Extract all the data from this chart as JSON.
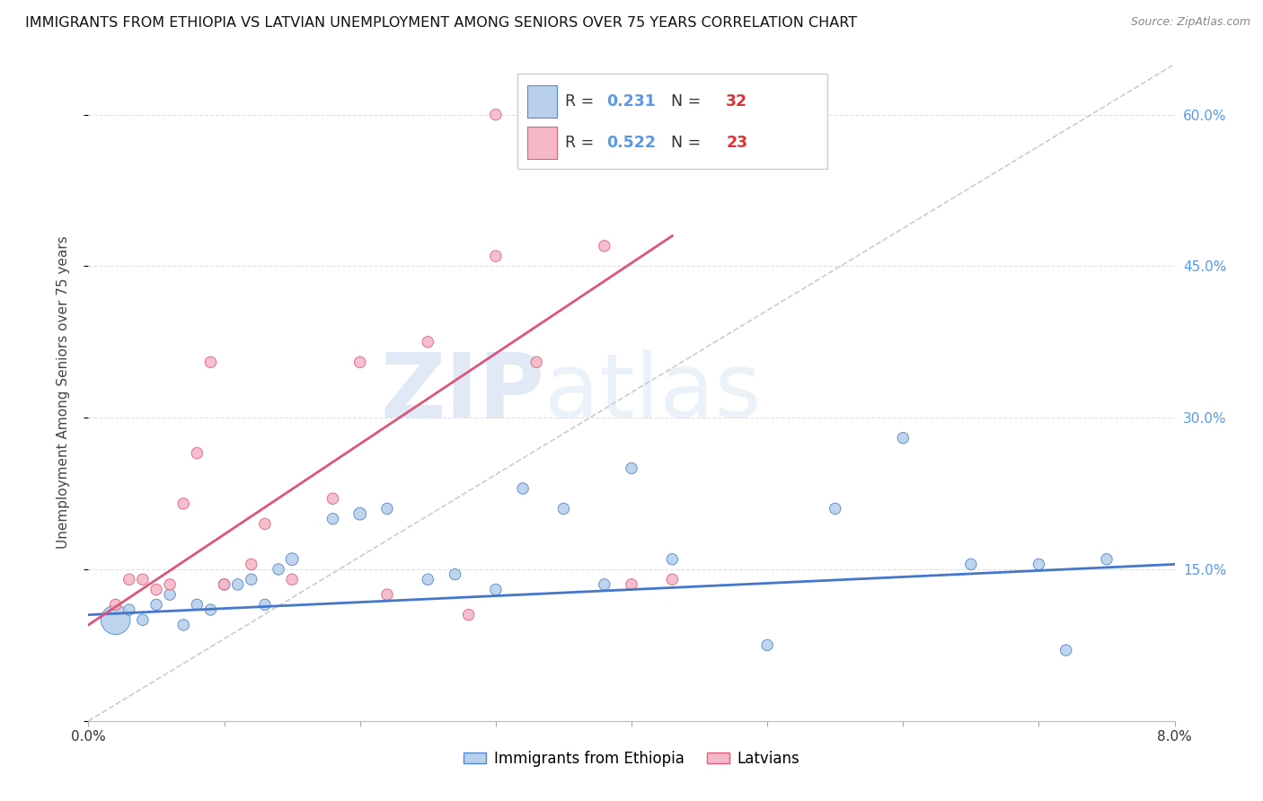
{
  "title": "IMMIGRANTS FROM ETHIOPIA VS LATVIAN UNEMPLOYMENT AMONG SENIORS OVER 75 YEARS CORRELATION CHART",
  "source": "Source: ZipAtlas.com",
  "ylabel": "Unemployment Among Seniors over 75 years",
  "legend_labels": [
    "Immigrants from Ethiopia",
    "Latvians"
  ],
  "r_blue": "0.231",
  "n_blue": "32",
  "r_pink": "0.522",
  "n_pink": "23",
  "blue_fill": "#b8d0eb",
  "blue_edge": "#5588cc",
  "pink_fill": "#f5b8c8",
  "pink_edge": "#e06080",
  "blue_line_color": "#4477cc",
  "pink_line_color": "#dd5577",
  "diag_color": "#cccccc",
  "text_color_r": "#5599ee",
  "text_color_n": "#dd3333",
  "xmin": 0.0,
  "xmax": 0.08,
  "ymin": 0.0,
  "ymax": 0.65,
  "blue_scatter_x": [
    0.002,
    0.003,
    0.004,
    0.005,
    0.006,
    0.007,
    0.008,
    0.009,
    0.01,
    0.011,
    0.012,
    0.013,
    0.014,
    0.015,
    0.018,
    0.02,
    0.022,
    0.025,
    0.027,
    0.03,
    0.032,
    0.035,
    0.038,
    0.04,
    0.043,
    0.05,
    0.055,
    0.06,
    0.065,
    0.07,
    0.072,
    0.075
  ],
  "blue_scatter_y": [
    0.1,
    0.11,
    0.1,
    0.115,
    0.125,
    0.095,
    0.115,
    0.11,
    0.135,
    0.135,
    0.14,
    0.115,
    0.15,
    0.16,
    0.2,
    0.205,
    0.21,
    0.14,
    0.145,
    0.13,
    0.23,
    0.21,
    0.135,
    0.25,
    0.16,
    0.075,
    0.21,
    0.28,
    0.155,
    0.155,
    0.07,
    0.16
  ],
  "blue_scatter_s": [
    550,
    80,
    80,
    80,
    80,
    80,
    80,
    80,
    80,
    80,
    80,
    80,
    80,
    100,
    80,
    100,
    80,
    80,
    80,
    80,
    80,
    80,
    80,
    80,
    80,
    80,
    80,
    80,
    80,
    80,
    80,
    80
  ],
  "pink_scatter_x": [
    0.002,
    0.003,
    0.004,
    0.005,
    0.006,
    0.007,
    0.008,
    0.009,
    0.01,
    0.012,
    0.013,
    0.015,
    0.018,
    0.02,
    0.022,
    0.025,
    0.028,
    0.03,
    0.03,
    0.033,
    0.038,
    0.04,
    0.043
  ],
  "pink_scatter_y": [
    0.115,
    0.14,
    0.14,
    0.13,
    0.135,
    0.215,
    0.265,
    0.355,
    0.135,
    0.155,
    0.195,
    0.14,
    0.22,
    0.355,
    0.125,
    0.375,
    0.105,
    0.46,
    0.6,
    0.355,
    0.47,
    0.135,
    0.14
  ],
  "pink_scatter_s": [
    80,
    80,
    80,
    80,
    80,
    80,
    80,
    80,
    80,
    80,
    80,
    80,
    80,
    80,
    80,
    80,
    80,
    80,
    80,
    80,
    80,
    80,
    80
  ],
  "blue_line_x": [
    0.0,
    0.08
  ],
  "blue_line_y": [
    0.105,
    0.155
  ],
  "pink_line_x": [
    0.0,
    0.043
  ],
  "pink_line_y": [
    0.095,
    0.48
  ],
  "diag_line_x": [
    0.0,
    0.08
  ],
  "diag_line_y": [
    0.0,
    0.65
  ],
  "ytick_vals": [
    0.0,
    0.15,
    0.3,
    0.45,
    0.6
  ],
  "ytick_labels_right": [
    "",
    "15.0%",
    "30.0%",
    "45.0%",
    "60.0%"
  ],
  "xtick_vals": [
    0.0,
    0.01,
    0.02,
    0.03,
    0.04,
    0.05,
    0.06,
    0.07,
    0.08
  ],
  "xtick_labels": [
    "0.0%",
    "",
    "",
    "",
    "",
    "",
    "",
    "",
    "8.0%"
  ],
  "watermark_zip_color": "#c8d8ee",
  "watermark_atlas_color": "#c8d8ee",
  "grid_color": "#e0e0e0"
}
